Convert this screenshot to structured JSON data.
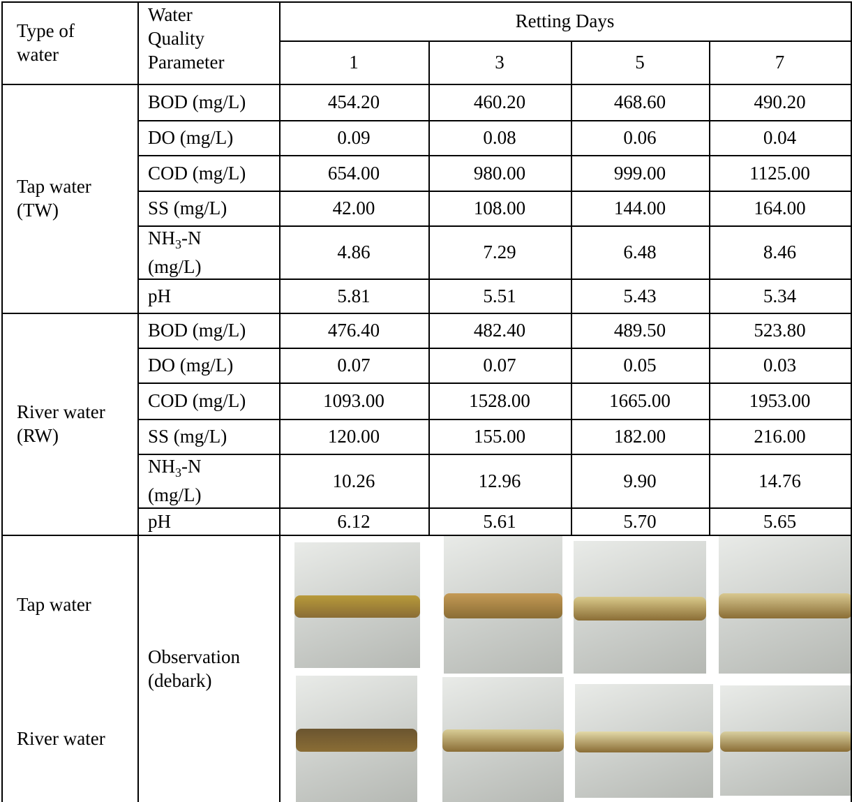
{
  "header": {
    "type_of_water": "Type of water",
    "parameter": "Water Quality Parameter",
    "retting_days": "Retting Days",
    "days": [
      "1",
      "3",
      "5",
      "7"
    ]
  },
  "groups": [
    {
      "water": "Tap water (TW)",
      "rows": [
        {
          "parameter": "BOD (mg/L)",
          "values": [
            "454.20",
            "460.20",
            "468.60",
            "490.20"
          ]
        },
        {
          "parameter": "DO (mg/L)",
          "values": [
            "0.09",
            "0.08",
            "0.06",
            "0.04"
          ]
        },
        {
          "parameter": "COD (mg/L)",
          "values": [
            "654.00",
            "980.00",
            "999.00",
            "1125.00"
          ]
        },
        {
          "parameter": "SS (mg/L)",
          "values": [
            "42.00",
            "108.00",
            "144.00",
            "164.00"
          ]
        },
        {
          "parameter": {
            "base": "NH",
            "sub": "3",
            "rest": "-N",
            "unit": "(mg/L)"
          },
          "values": [
            "4.86",
            "7.29",
            "6.48",
            "8.46"
          ]
        },
        {
          "parameter": "pH",
          "values": [
            "5.81",
            "5.51",
            "5.43",
            "5.34"
          ]
        }
      ]
    },
    {
      "water": "River water (RW)",
      "rows": [
        {
          "parameter": "BOD (mg/L)",
          "values": [
            "476.40",
            "482.40",
            "489.50",
            "523.80"
          ]
        },
        {
          "parameter": "DO (mg/L)",
          "values": [
            "0.07",
            "0.07",
            "0.05",
            "0.03"
          ]
        },
        {
          "parameter": "COD (mg/L)",
          "values": [
            "1093.00",
            "1528.00",
            "1665.00",
            "1953.00"
          ]
        },
        {
          "parameter": "SS (mg/L)",
          "values": [
            "120.00",
            "155.00",
            "182.00",
            "216.00"
          ]
        },
        {
          "parameter": {
            "base": "NH",
            "sub": "3",
            "rest": "-N",
            "unit": "(mg/L)"
          },
          "values": [
            "10.26",
            "12.96",
            "9.90",
            "14.76"
          ]
        },
        {
          "parameter": "pH",
          "values": [
            "6.12",
            "5.61",
            "5.70",
            "5.65"
          ]
        }
      ]
    }
  ],
  "observation": {
    "label": "Observation (debark)",
    "rows": [
      {
        "water": "Tap water"
      },
      {
        "water": "River water"
      }
    ]
  }
}
